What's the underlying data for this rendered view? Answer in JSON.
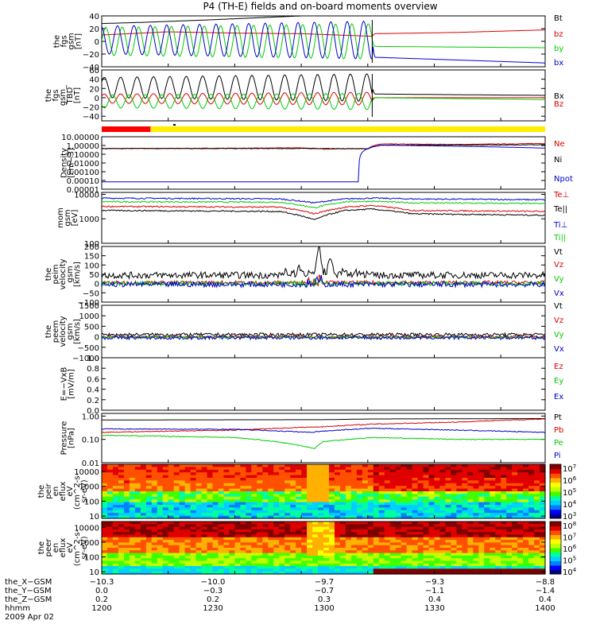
{
  "title": "P4 (TH-E) fields and on-board moments overview",
  "colors": {
    "black": "#000000",
    "red": "#dd0000",
    "green": "#00cc00",
    "blue": "#0000cc",
    "yellow": "#ffee00",
    "barRed": "#ff0000"
  },
  "chart_data": [
    {
      "type": "line",
      "panel": "fgs_gsm",
      "ylabel": [
        "the",
        "fgs",
        "gsm",
        "[nT]"
      ],
      "yticks": [
        "40",
        "20",
        "0",
        "−20",
        "−40"
      ],
      "ylim": [
        -40,
        40
      ],
      "legend": [
        {
          "name": "Bt",
          "color": "black"
        },
        {
          "name": "bz",
          "color": "red"
        },
        {
          "name": "by",
          "color": "green"
        },
        {
          "name": "bx",
          "color": "blue"
        }
      ],
      "series": [
        {
          "name": "Bt",
          "x": [
            1200,
            1220,
            1250,
            1270,
            1290,
            1322,
            1323,
            1360,
            1400
          ],
          "y": [
            28,
            30,
            34,
            37,
            40,
            42,
            41,
            40,
            40
          ]
        },
        {
          "name": "bz",
          "x": [
            1200,
            1230,
            1260,
            1290,
            1322,
            1323,
            1360,
            1400
          ],
          "y": [
            10,
            15,
            13,
            12,
            8,
            12,
            14,
            18
          ]
        },
        {
          "name": "by",
          "x": [
            1200,
            1322,
            1323,
            1400
          ],
          "y": [
            0,
            0,
            -8,
            -10
          ],
          "osc": {
            "amp": [
              22,
              28
            ],
            "period": 7.4
          }
        },
        {
          "name": "bx",
          "x": [
            1200,
            1322,
            1323,
            1400
          ],
          "y": [
            2,
            2,
            -25,
            -34
          ],
          "osc": {
            "amp": [
              22,
              30
            ],
            "period": 7.4,
            "phase": 1.8
          }
        }
      ]
    },
    {
      "type": "line",
      "panel": "fgs_gse_rot",
      "ylabel": [
        "the",
        "fgs",
        "gsm_",
        "TBD",
        "[nT]"
      ],
      "yticks": [
        "60",
        "40",
        "20",
        "0",
        "−20",
        "−40"
      ],
      "ylim": [
        -50,
        60
      ],
      "legend": [
        {
          "name": "Bx",
          "color": "black"
        },
        {
          "name": "Bz",
          "color": "red"
        }
      ],
      "series": [
        {
          "name": "Bx",
          "x": [
            1200,
            1322,
            1323,
            1400
          ],
          "y": [
            22,
            22,
            8,
            5
          ],
          "osc": {
            "amp": [
              22,
              30
            ],
            "period": 7.4,
            "phase": 0.6
          }
        },
        {
          "name": "Bz",
          "x": [
            1200,
            1322,
            1323,
            1400
          ],
          "y": [
            -2,
            -2,
            0,
            0
          ],
          "osc": {
            "amp": [
              10,
              14
            ],
            "period": 7.4,
            "phase": 0.6
          }
        },
        {
          "name": "green",
          "x": [
            1200,
            1322,
            1323,
            1400
          ],
          "y": [
            -8,
            -8,
            0,
            -4
          ],
          "osc": {
            "amp": [
              14,
              18
            ],
            "period": 7.4,
            "phase": 3.7
          }
        }
      ]
    },
    {
      "type": "bar-strip",
      "panel": "mode",
      "segments": [
        {
          "from": 1200,
          "to": 1222,
          "color": "barRed"
        },
        {
          "from": 1222,
          "to": 1400,
          "color": "yellow"
        }
      ]
    },
    {
      "type": "line",
      "panel": "density",
      "log": true,
      "ylabel": [
        "Density",
        "[cm−3]"
      ],
      "yticks": [
        "10.00000",
        "1.00000",
        "0.10000",
        "0.01000",
        "0.00100",
        "0.00010",
        "0.00001"
      ],
      "ylim": [
        1e-05,
        10
      ],
      "legend": [
        {
          "name": "Ne",
          "color": "red"
        },
        {
          "name": "Ni",
          "color": "black"
        },
        {
          "name": "Npot",
          "color": "blue"
        }
      ],
      "series": [
        {
          "name": "Ne",
          "x": [
            1200,
            1270,
            1290,
            1300,
            1320,
            1326,
            1360,
            1390,
            1400
          ],
          "y": [
            0.45,
            0.5,
            0.55,
            0.4,
            0.45,
            1.5,
            1.3,
            1.6,
            1.7
          ]
        },
        {
          "name": "Ni",
          "x": [
            1200,
            1300,
            1320,
            1326,
            1400
          ],
          "y": [
            0.45,
            0.45,
            0.42,
            1.1,
            1.2
          ]
        },
        {
          "name": "Npot",
          "x": [
            1200,
            1316,
            1326,
            1400
          ],
          "y": [
            7e-05,
            7e-05,
            1.1,
            0.5
          ]
        }
      ]
    },
    {
      "type": "line",
      "panel": "mom_temp",
      "log": true,
      "ylabel": [
        "mom",
        "gsm",
        "[eV]"
      ],
      "yticks": [
        "10000",
        "1000",
        "100"
      ],
      "ylim": [
        100,
        12000
      ],
      "legend": [
        {
          "name": "Te⊥",
          "color": "red"
        },
        {
          "name": "Te||",
          "color": "black"
        },
        {
          "name": "Ti⊥",
          "color": "blue"
        },
        {
          "name": "Ti||",
          "color": "green"
        }
      ],
      "series": [
        {
          "name": "Ti⊥",
          "x": [
            1200,
            1280,
            1296,
            1310,
            1322,
            1340,
            1400
          ],
          "y": [
            7000,
            6500,
            4500,
            6500,
            7000,
            6500,
            6000
          ]
        },
        {
          "name": "Ti||",
          "x": [
            1200,
            1280,
            1296,
            1310,
            1322,
            1340,
            1400
          ],
          "y": [
            5000,
            4800,
            2800,
            5000,
            5200,
            4500,
            4200
          ]
        },
        {
          "name": "Te⊥",
          "x": [
            1200,
            1280,
            1296,
            1310,
            1322,
            1340,
            1400
          ],
          "y": [
            3200,
            3000,
            1600,
            3000,
            3500,
            2200,
            2000
          ]
        },
        {
          "name": "Te||",
          "x": [
            1200,
            1280,
            1296,
            1310,
            1322,
            1340,
            1400
          ],
          "y": [
            2200,
            2000,
            900,
            2200,
            2500,
            1600,
            1400
          ]
        }
      ]
    },
    {
      "type": "line",
      "panel": "peim_velocity",
      "ylabel": [
        "the",
        "peim",
        "velocity",
        "gsm",
        "[km/s]"
      ],
      "yticks": [
        "200",
        "150",
        "100",
        "50",
        "0",
        "−50",
        "−100"
      ],
      "ylim": [
        -100,
        200
      ],
      "legend": [
        {
          "name": "Vt",
          "color": "black"
        },
        {
          "name": "Vz",
          "color": "red"
        },
        {
          "name": "Vy",
          "color": "green"
        },
        {
          "name": "Vx",
          "color": "blue"
        }
      ],
      "spikes": [
        {
          "x": 1298,
          "y": 190
        },
        {
          "x": 1303,
          "y": 130
        },
        {
          "x": 1308,
          "y": 60
        },
        {
          "x": 1289,
          "y": 80
        }
      ],
      "series": [
        {
          "name": "Vt",
          "base": 45,
          "noise": 18
        },
        {
          "name": "Vz",
          "base": 5,
          "noise": 10
        },
        {
          "name": "Vy",
          "base": 0,
          "noise": 12
        },
        {
          "name": "Vx",
          "base": -5,
          "noise": 14
        }
      ]
    },
    {
      "type": "line",
      "panel": "peem_velocity",
      "ylabel": [
        "the",
        "peem",
        "velocity",
        "gsm",
        "[km/s]"
      ],
      "yticks": [
        "1500",
        "1000",
        "500",
        "0",
        "−500",
        "−1000"
      ],
      "ylim": [
        -1000,
        1500
      ],
      "legend": [
        {
          "name": "Vt",
          "color": "black"
        },
        {
          "name": "Vz",
          "color": "red"
        },
        {
          "name": "Vy",
          "color": "green"
        },
        {
          "name": "Vx",
          "color": "blue"
        }
      ],
      "series": [
        {
          "name": "Vt",
          "base": 100,
          "noise": 80
        },
        {
          "name": "Vz",
          "base": 0,
          "noise": 60
        },
        {
          "name": "Vy",
          "base": -30,
          "noise": 60
        },
        {
          "name": "Vx",
          "base": -50,
          "noise": 80
        }
      ]
    },
    {
      "type": "line",
      "panel": "efield",
      "ylabel": [
        "E=−VxB",
        "[mV/m]"
      ],
      "yticks": [
        "1.0",
        "0.8",
        "0.6",
        "0.4",
        "0.2",
        "0.0"
      ],
      "ylim": [
        0,
        1
      ],
      "legend": [
        {
          "name": "Ez",
          "color": "red"
        },
        {
          "name": "Ey",
          "color": "green"
        },
        {
          "name": "Ex",
          "color": "blue"
        }
      ],
      "series": []
    },
    {
      "type": "line",
      "panel": "pressure",
      "log": true,
      "ylabel": [
        "Pressure",
        "[nPa]"
      ],
      "yticks": [
        "1.00",
        "0.10",
        "0.01"
      ],
      "ylim": [
        0.01,
        1.3
      ],
      "legend": [
        {
          "name": "Pt",
          "color": "black"
        },
        {
          "name": "Pb",
          "color": "red"
        },
        {
          "name": "Pe",
          "color": "green"
        },
        {
          "name": "Pi",
          "color": "blue"
        }
      ],
      "series": [
        {
          "name": "Pt",
          "x": [
            1200,
            1300,
            1322,
            1400
          ],
          "y": [
            0.68,
            0.7,
            0.75,
            0.78
          ]
        },
        {
          "name": "Pb",
          "x": [
            1200,
            1260,
            1300,
            1322,
            1360,
            1400
          ],
          "y": [
            0.2,
            0.25,
            0.35,
            0.45,
            0.55,
            0.75
          ]
        },
        {
          "name": "Pi",
          "x": [
            1200,
            1260,
            1294,
            1298,
            1322,
            1360,
            1400
          ],
          "y": [
            0.28,
            0.27,
            0.2,
            0.22,
            0.3,
            0.25,
            0.2
          ]
        },
        {
          "name": "Pe",
          "x": [
            1200,
            1260,
            1296,
            1300,
            1322,
            1360,
            1400
          ],
          "y": [
            0.15,
            0.12,
            0.04,
            0.08,
            0.12,
            0.1,
            0.1
          ]
        }
      ]
    },
    {
      "type": "heatmap",
      "panel": "peir_eflux",
      "log": true,
      "ylabel": [
        "the",
        "peir",
        "en",
        "eflux",
        "eV",
        "(cm^2-s-",
        "sr-eV)"
      ],
      "yticks": [
        "10000",
        "1000",
        "100",
        "10"
      ],
      "ylim": [
        7,
        30000
      ],
      "colorbar": [
        "10^7",
        "10^6",
        "10^5",
        "10^4",
        "10^3"
      ]
    },
    {
      "type": "heatmap",
      "panel": "peer_eflux",
      "log": true,
      "ylabel": [
        "the",
        "peer",
        "en",
        "eflux",
        "eV",
        "(cm^2-s-",
        "sr-eV)"
      ],
      "yticks": [
        "10000",
        "1000",
        "100",
        "10"
      ],
      "ylim": [
        7,
        25000
      ],
      "colorbar": [
        "10^8",
        "10^7",
        "10^6",
        "10^5",
        "10^4"
      ]
    }
  ],
  "xaxis": {
    "rows": [
      {
        "label": "the_X−GSM",
        "values": [
          "−10.3",
          "−10.0",
          "−9.7",
          "−9.3",
          "−8.8"
        ]
      },
      {
        "label": "the_Y−GSM",
        "values": [
          "0.0",
          "−0.3",
          "−0.7",
          "−1.1",
          "−1.4"
        ]
      },
      {
        "label": "the_Z−GSM",
        "values": [
          "0.2",
          "0.2",
          "0.3",
          "0.4",
          "0.4"
        ]
      },
      {
        "label": "hhmm",
        "values": [
          "1200",
          "1230",
          "1300",
          "1330",
          "1400"
        ]
      }
    ],
    "date": "2009 Apr 02",
    "xlim": [
      1200,
      1400
    ]
  }
}
